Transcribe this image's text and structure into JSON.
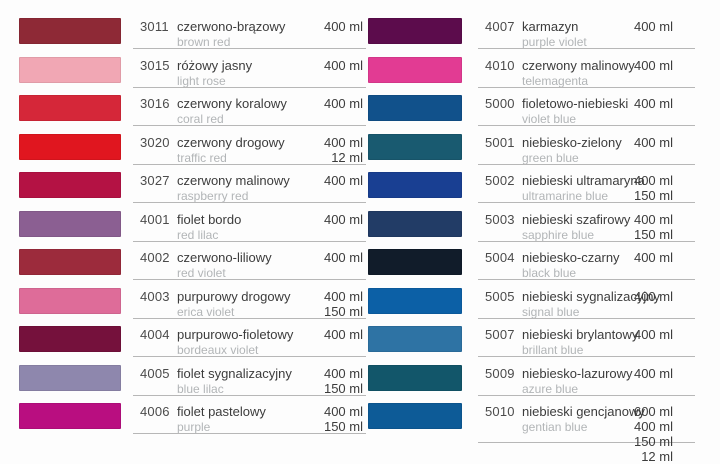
{
  "palette_table": {
    "separator_color": "#b7b7b7",
    "text_colors": {
      "code": "#4b4b4b",
      "name_pl": "#3c3c3c",
      "name_en": "#b2b5b7",
      "volume": "#3c3c3c"
    },
    "columns": [
      {
        "name": "left",
        "rows": [
          {
            "code": "3011",
            "name_pl": "czerwono-brązowy",
            "name_en": "brown red",
            "volumes": [
              "400 ml"
            ],
            "color": "#8E2936"
          },
          {
            "code": "3015",
            "name_pl": "różowy jasny",
            "name_en": "light rose",
            "volumes": [
              "400 ml"
            ],
            "color": "#F1A7B4"
          },
          {
            "code": "3016",
            "name_pl": "czerwony koralowy",
            "name_en": "coral red",
            "volumes": [
              "400 ml"
            ],
            "color": "#D52739"
          },
          {
            "code": "3020",
            "name_pl": "czerwony drogowy",
            "name_en": "traffic red",
            "volumes": [
              "400 ml",
              "12 ml"
            ],
            "color": "#E0161F"
          },
          {
            "code": "3027",
            "name_pl": "czerwony malinowy",
            "name_en": "raspberry red",
            "volumes": [
              "400 ml"
            ],
            "color": "#B41244"
          },
          {
            "code": "4001",
            "name_pl": "fiolet bordo",
            "name_en": "red lilac",
            "volumes": [
              "400 ml"
            ],
            "color": "#8B5F92"
          },
          {
            "code": "4002",
            "name_pl": "czerwono-liliowy",
            "name_en": "red violet",
            "volumes": [
              "400 ml"
            ],
            "color": "#9C2B3C"
          },
          {
            "code": "4003",
            "name_pl": "purpurowy drogowy",
            "name_en": "erica violet",
            "volumes": [
              "400 ml",
              "150 ml"
            ],
            "color": "#DE6C99"
          },
          {
            "code": "4004",
            "name_pl": "purpurowo-fioletowy",
            "name_en": "bordeaux violet",
            "volumes": [
              "400 ml"
            ],
            "color": "#75113C"
          },
          {
            "code": "4005",
            "name_pl": "fiolet sygnalizacyjny",
            "name_en": "blue lilac",
            "volumes": [
              "400 ml",
              "150 ml"
            ],
            "color": "#8E87AD"
          },
          {
            "code": "4006",
            "name_pl": "fiolet pastelowy",
            "name_en": "purple",
            "volumes": [
              "400 ml",
              "150 ml"
            ],
            "color": "#B90E80"
          }
        ]
      },
      {
        "name": "right",
        "rows": [
          {
            "code": "4007",
            "name_pl": "karmazyn",
            "name_en": "purple violet",
            "volumes": [
              "400 ml"
            ],
            "color": "#5C0C4C"
          },
          {
            "code": "4010",
            "name_pl": "czerwony malinowy",
            "name_en": "telemagenta",
            "volumes": [
              "400 ml"
            ],
            "color": "#E23B93"
          },
          {
            "code": "5000",
            "name_pl": "fioletowo-niebieski",
            "name_en": "violet blue",
            "volumes": [
              "400 ml"
            ],
            "color": "#11518B"
          },
          {
            "code": "5001",
            "name_pl": "niebiesko-zielony",
            "name_en": "green blue",
            "volumes": [
              "400 ml"
            ],
            "color": "#195A70"
          },
          {
            "code": "5002",
            "name_pl": "niebieski ultramaryna",
            "name_en": "ultramarine blue",
            "volumes": [
              "400 ml",
              "150 ml"
            ],
            "color": "#193F92"
          },
          {
            "code": "5003",
            "name_pl": "niebieski szafirowy",
            "name_en": "sapphire blue",
            "volumes": [
              "400 ml",
              "150 ml"
            ],
            "color": "#223C66"
          },
          {
            "code": "5004",
            "name_pl": "niebiesko-czarny",
            "name_en": "black blue",
            "volumes": [
              "400 ml"
            ],
            "color": "#111C2A"
          },
          {
            "code": "5005",
            "name_pl": "niebieski sygnalizacyjny",
            "name_en": "signal blue",
            "volumes": [
              "400 ml"
            ],
            "color": "#0C60A6"
          },
          {
            "code": "5007",
            "name_pl": "niebieski brylantowy",
            "name_en": "brillant blue",
            "volumes": [
              "400 ml"
            ],
            "color": "#2E73A4"
          },
          {
            "code": "5009",
            "name_pl": "niebiesko-lazurowy",
            "name_en": "azure blue",
            "volumes": [
              "400 ml"
            ],
            "color": "#12566A"
          },
          {
            "code": "5010",
            "name_pl": "niebieski gencjanowy",
            "name_en": "gentian blue",
            "volumes": [
              "600 ml",
              "400 ml",
              "150 ml",
              "12 ml"
            ],
            "color": "#0D5B97"
          }
        ]
      }
    ]
  }
}
